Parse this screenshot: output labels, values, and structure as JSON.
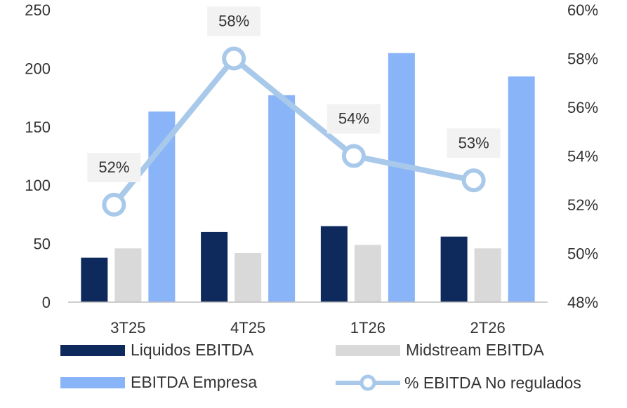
{
  "chart_data": {
    "type": "bar",
    "categories": [
      "3T25",
      "4T25",
      "1T26",
      "2T26"
    ],
    "series": [
      {
        "name": "Liquidos EBITDA",
        "type": "bar",
        "axis": "left",
        "color": "#0e2a5c",
        "values": [
          38,
          60,
          65,
          56
        ]
      },
      {
        "name": "Midstream EBITDA",
        "type": "bar",
        "axis": "left",
        "color": "#d9d9d9",
        "values": [
          46,
          42,
          49,
          46
        ]
      },
      {
        "name": "EBITDA Empresa",
        "type": "bar",
        "axis": "left",
        "color": "#8ab4f8",
        "values": [
          163,
          177,
          213,
          193
        ]
      },
      {
        "name": "% EBITDA No regulados",
        "type": "line",
        "axis": "right",
        "color": "#a9c9ea",
        "values": [
          52,
          58,
          54,
          53
        ],
        "labels": [
          "52%",
          "58%",
          "54%",
          "53%"
        ]
      }
    ],
    "yaxis_left": {
      "range": [
        0,
        250
      ],
      "ticks": [
        "0",
        "50",
        "100",
        "150",
        "200",
        "250"
      ]
    },
    "yaxis_right": {
      "range": [
        48,
        60
      ],
      "ticks": [
        "48%",
        "50%",
        "52%",
        "54%",
        "56%",
        "58%",
        "60%"
      ]
    },
    "legend_position": "bottom",
    "grid": false
  }
}
